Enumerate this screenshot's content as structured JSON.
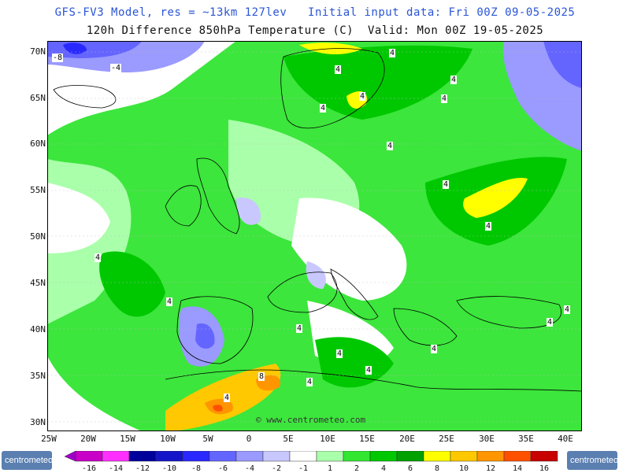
{
  "header": {
    "line1": "GFS-FV3 Model, res = ~13km 127lev   Initial input data: Fri 00Z 09-05-2025",
    "line2": "120h Difference 850hPa Temperature (C)  Valid: Mon 00Z 19-05-2025"
  },
  "axes": {
    "lat_labels": [
      "70N",
      "65N",
      "60N",
      "55N",
      "50N",
      "45N",
      "40N",
      "35N",
      "30N"
    ],
    "lon_labels": [
      "25W",
      "20W",
      "15W",
      "10W",
      "5W",
      "0",
      "5E",
      "10E",
      "15E",
      "20E",
      "25E",
      "30E",
      "35E",
      "40E"
    ]
  },
  "watermark": "© www.centrometeo.com",
  "logos": {
    "left": "centrometeo",
    "right": "centrometeo"
  },
  "legend": {
    "colors": [
      "#a000c8",
      "#c800c8",
      "#ff30ff",
      "#00009a",
      "#1414c8",
      "#2828ff",
      "#6464ff",
      "#9a9aff",
      "#c8c8ff",
      "#ffffff",
      "#aaffaa",
      "#32e632",
      "#00c800",
      "#00a000",
      "#ffff00",
      "#ffc800",
      "#ff9600",
      "#ff5000",
      "#c80000",
      "#960000"
    ],
    "labels": [
      "-16",
      "-14",
      "-12",
      "-10",
      "-8",
      "-6",
      "-4",
      "-2",
      "-1",
      "1",
      "2",
      "4",
      "6",
      "8",
      "10",
      "12",
      "14",
      "16"
    ]
  },
  "contour_labels": [
    "-8",
    "-4",
    "4",
    "4",
    "4",
    "4",
    "4",
    "4",
    "4",
    "4",
    "4",
    "4",
    "4",
    "4",
    "4",
    "4",
    "4",
    "4",
    "4",
    "4",
    "4",
    "8"
  ]
}
